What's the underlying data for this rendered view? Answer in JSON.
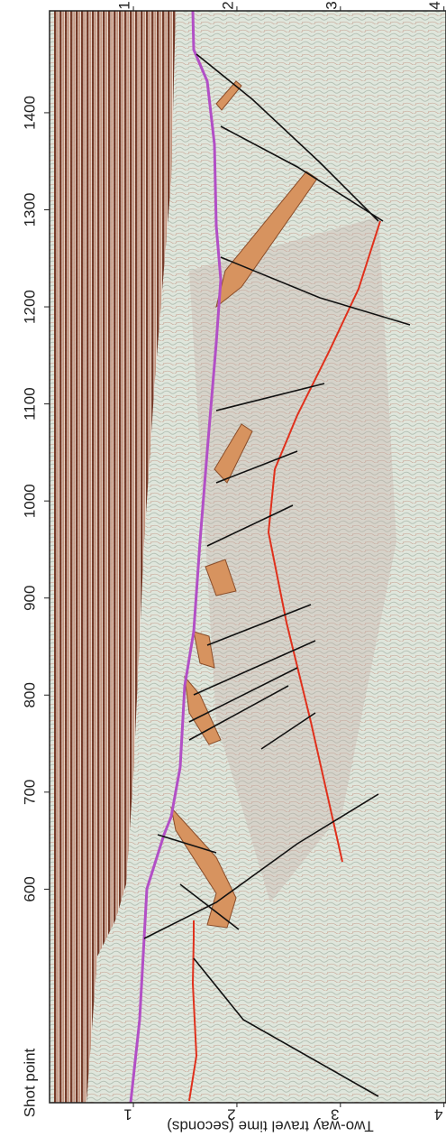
{
  "chart_data": {
    "type": "seismic-section",
    "xlabel": "Two-way travel time (seconds)",
    "ylabel": "Shot point",
    "xlim": [
      0.19,
      4.02
    ],
    "xticks": [
      1,
      2,
      3,
      4
    ],
    "ylim": [
      380,
      1505
    ],
    "yticks": [
      600,
      700,
      800,
      900,
      1000,
      1100,
      1200,
      1300,
      1400
    ]
  }
}
